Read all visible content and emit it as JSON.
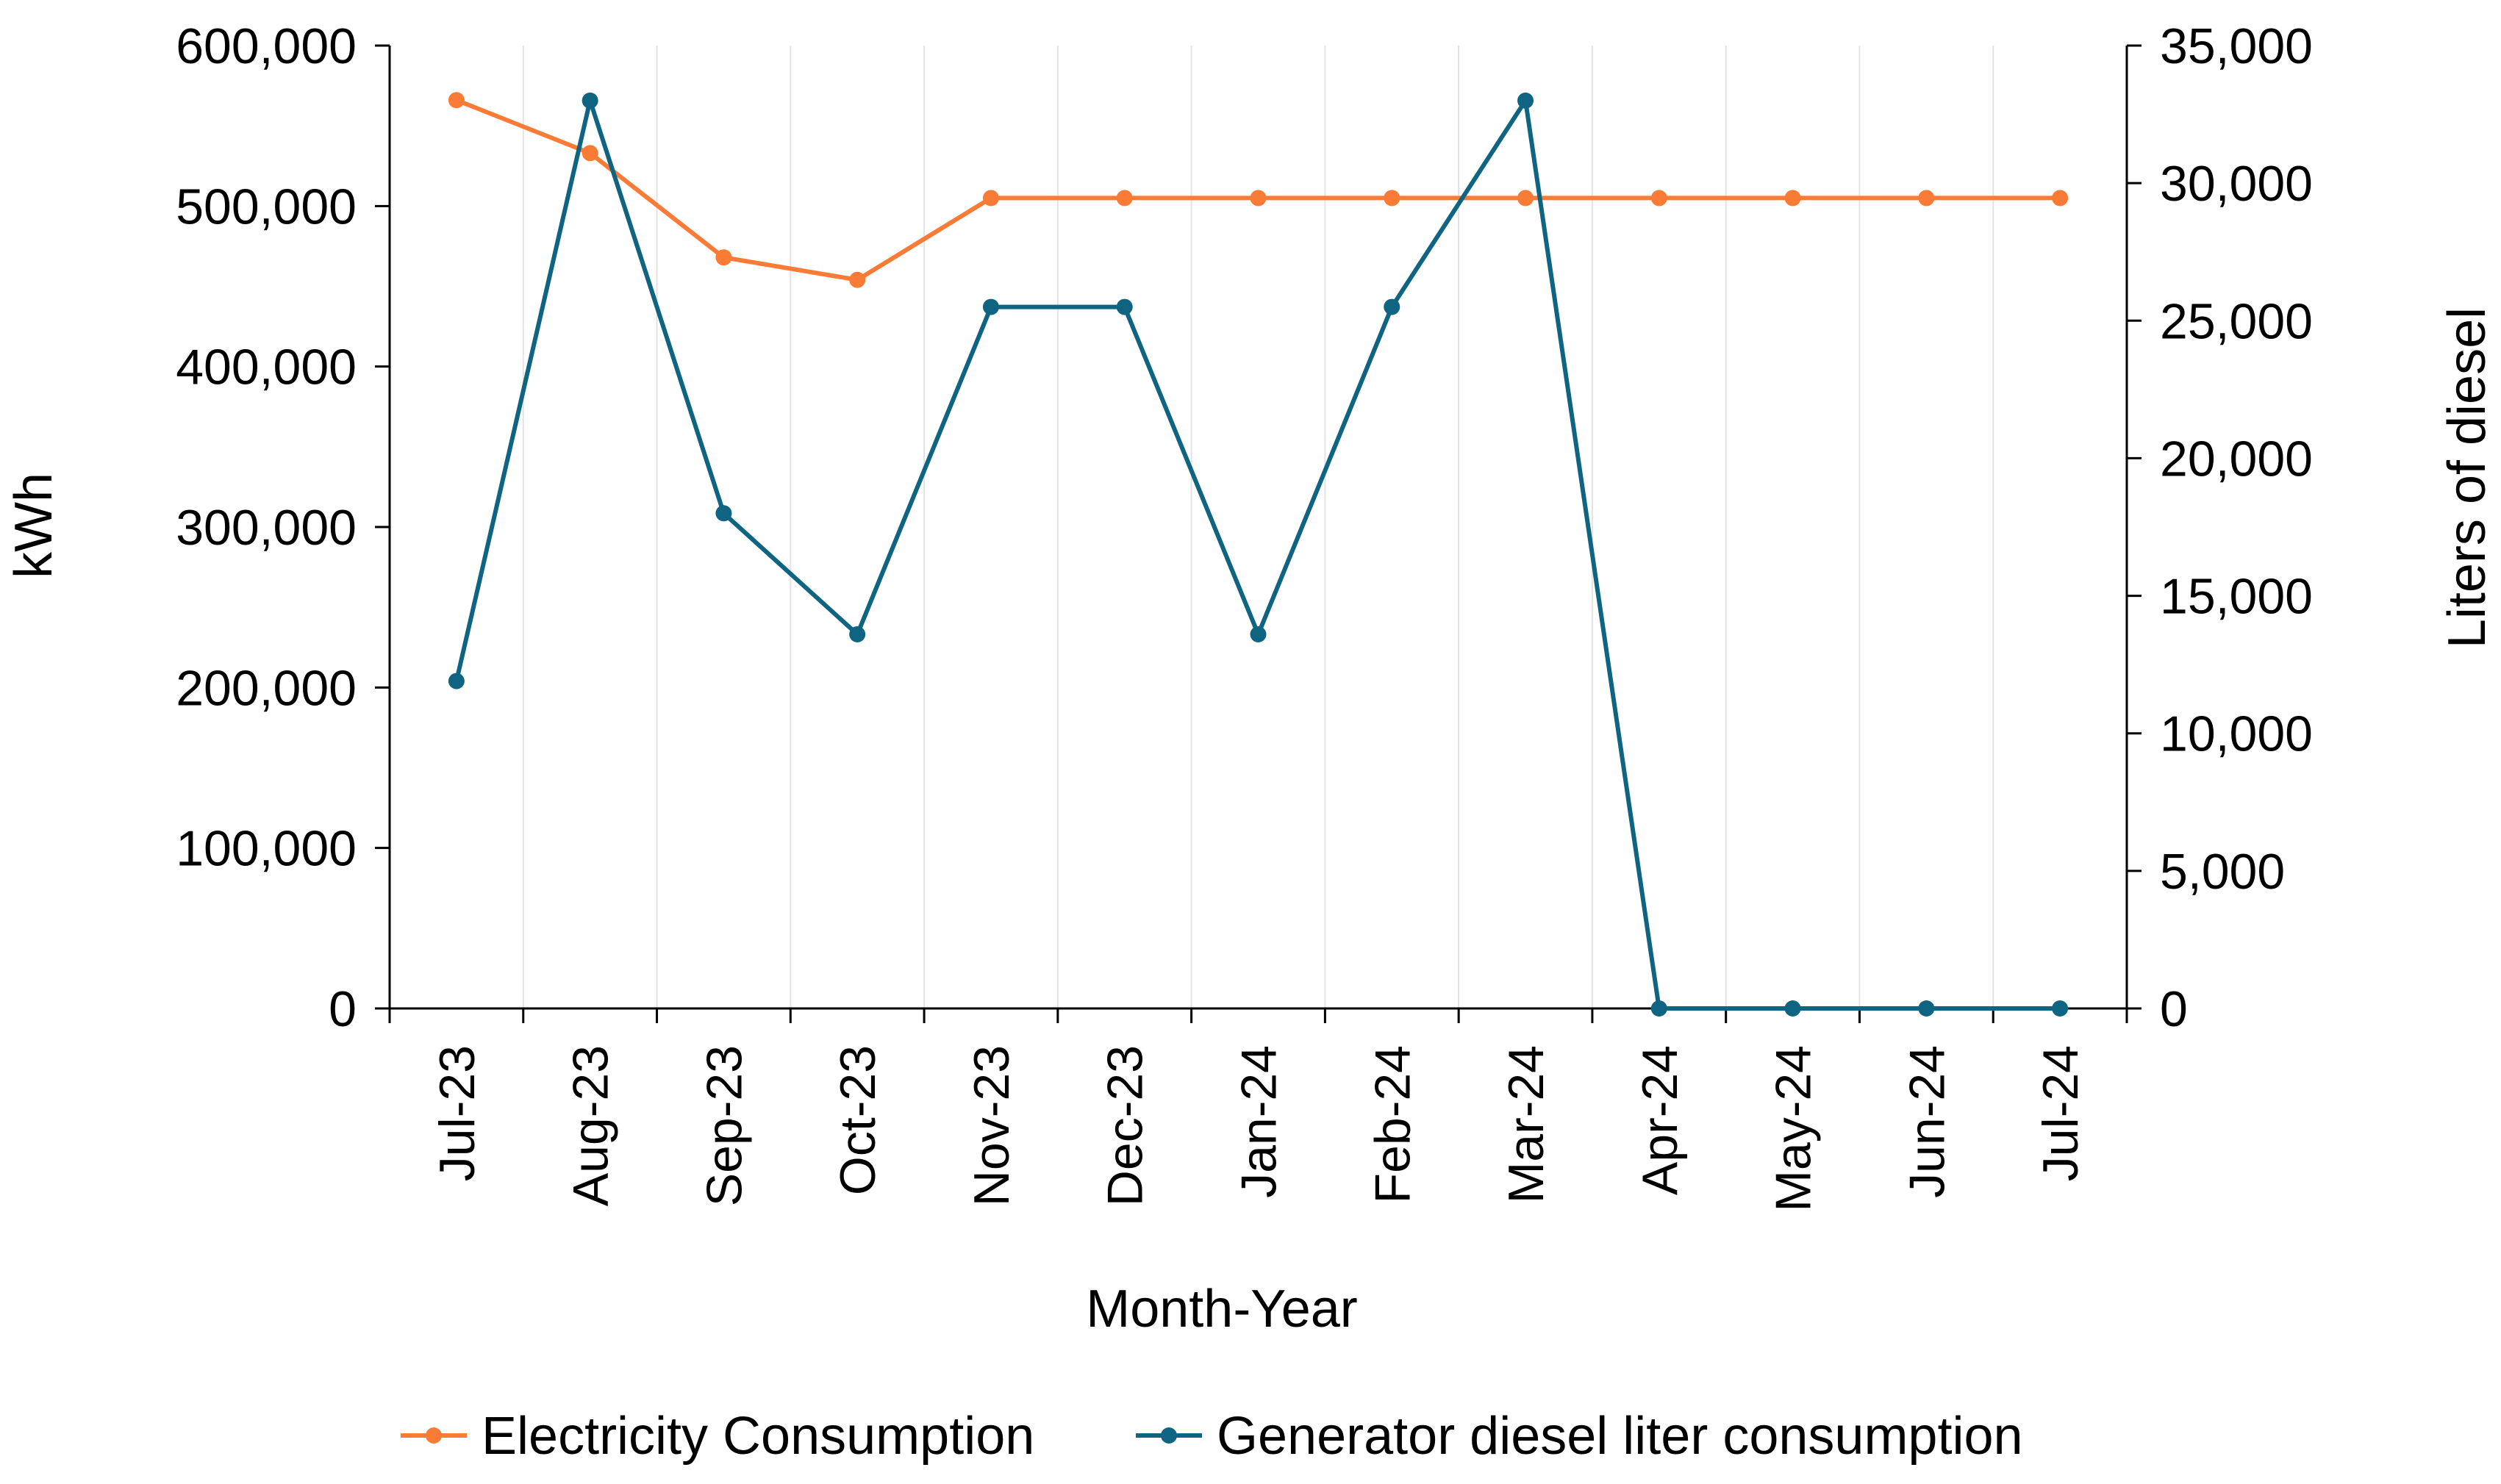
{
  "chart_data": {
    "type": "line",
    "title": "",
    "xlabel": "Month-Year",
    "ylabel": "kWh",
    "y2label": "Liters of diesel",
    "categories": [
      "Jul-23",
      "Aug-23",
      "Sep-23",
      "Oct-23",
      "Nov-23",
      "Dec-23",
      "Jan-24",
      "Feb-24",
      "Mar-24",
      "Apr-24",
      "May-24",
      "Jun-24",
      "Jul-24"
    ],
    "ylim": [
      0,
      600000
    ],
    "y2lim": [
      0,
      35000
    ],
    "y_ticks": [
      0,
      100000,
      200000,
      300000,
      400000,
      500000,
      600000
    ],
    "y_tick_labels": [
      "0",
      "100,000",
      "200,000",
      "300,000",
      "400,000",
      "500,000",
      "600,000"
    ],
    "y2_ticks": [
      0,
      5000,
      10000,
      15000,
      20000,
      25000,
      30000,
      35000
    ],
    "y2_tick_labels": [
      "0",
      "5,000",
      "10,000",
      "15,000",
      "20,000",
      "25,000",
      "30,000",
      "35,000"
    ],
    "grid": "vertical",
    "legend_position": "bottom",
    "series": [
      {
        "name": "Electricity Consumption",
        "axis": "left",
        "color": "#F97B35",
        "values": [
          566000,
          533000,
          468000,
          454000,
          505000,
          505000,
          505000,
          505000,
          505000,
          505000,
          505000,
          505000,
          505000
        ]
      },
      {
        "name": "Generator diesel liter consumption",
        "axis": "right",
        "color": "#0E6481",
        "values": [
          11900,
          33000,
          18000,
          13600,
          25500,
          25500,
          13600,
          25500,
          33000,
          0,
          0,
          0,
          0
        ]
      }
    ]
  }
}
